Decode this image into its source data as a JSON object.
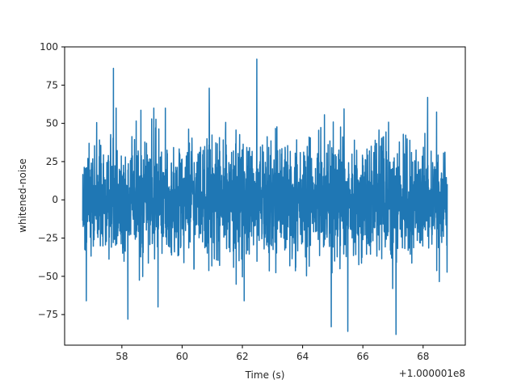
{
  "chart_data": {
    "type": "line",
    "title": "",
    "xlabel": "Time (s)",
    "ylabel": "whitened-noise",
    "x_offset_label": "+1.000001e8",
    "x_range": [
      56.7,
      68.8
    ],
    "xlim": [
      56.1,
      69.4
    ],
    "ylim": [
      -95,
      100
    ],
    "x_ticks": [
      58,
      60,
      62,
      64,
      66,
      68
    ],
    "x_tick_labels": [
      "58",
      "60",
      "62",
      "64",
      "66",
      "68"
    ],
    "y_ticks": [
      100,
      75,
      50,
      25,
      0,
      -25,
      -50,
      -75
    ],
    "y_tick_labels": [
      "100",
      "75",
      "50",
      "25",
      "0",
      "−25",
      "−50",
      "−75"
    ],
    "series": [
      {
        "color": "#1f77b4"
      }
    ],
    "notable_peaks": [
      {
        "x": 57.72,
        "y": 86
      },
      {
        "x": 62.48,
        "y": 92
      },
      {
        "x": 67.1,
        "y": -88
      },
      {
        "x": 65.5,
        "y": -86
      },
      {
        "x": 56.82,
        "y": -66
      },
      {
        "x": 58.2,
        "y": -78
      },
      {
        "x": 64.95,
        "y": -83
      },
      {
        "x": 59.2,
        "y": -70
      },
      {
        "x": 62.06,
        "y": -66
      },
      {
        "x": 68.15,
        "y": 67
      },
      {
        "x": 60.9,
        "y": 73
      }
    ],
    "grid": false,
    "legend": "none"
  }
}
